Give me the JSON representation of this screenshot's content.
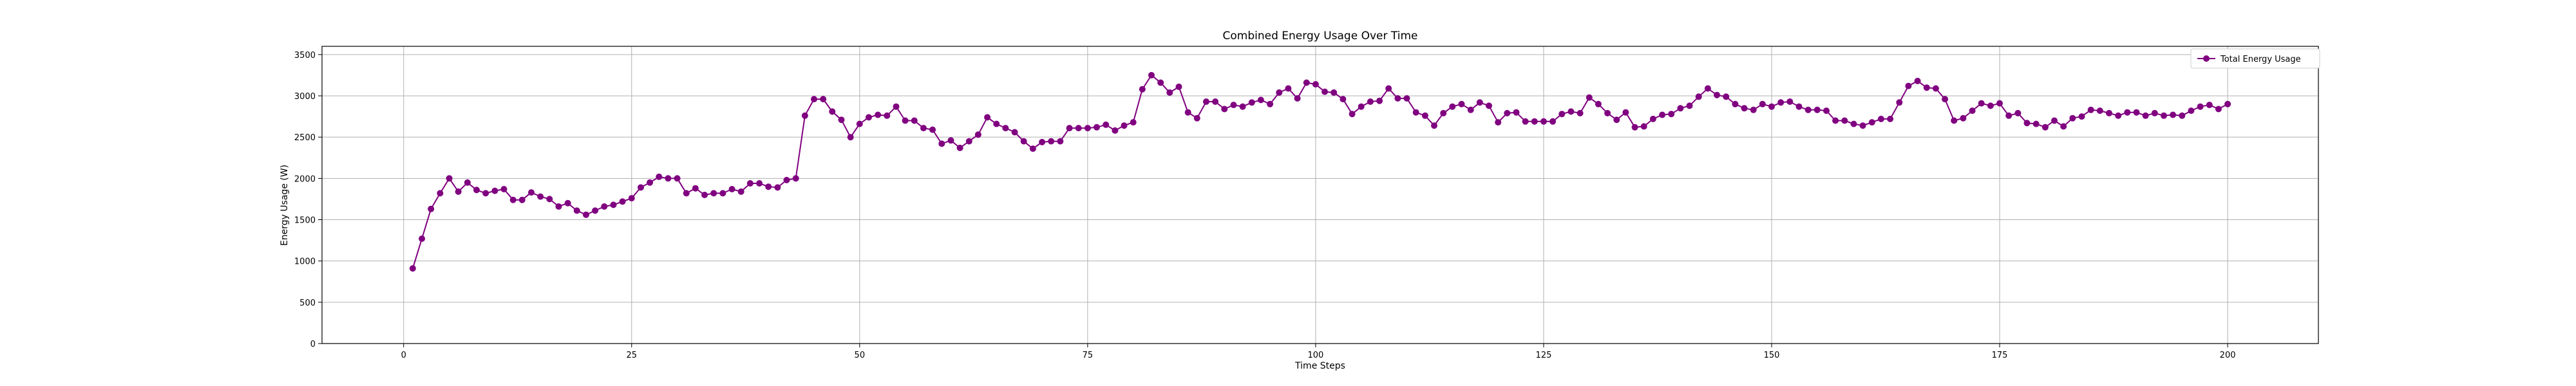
{
  "chart_data": {
    "type": "line",
    "title": "Combined Energy Usage Over Time",
    "xlabel": "Time Steps",
    "ylabel": "Energy Usage (W)",
    "xlim": [
      -8.95,
      209.95
    ],
    "ylim": [
      0,
      3600
    ],
    "xticks": [
      0,
      25,
      50,
      75,
      100,
      125,
      150,
      175,
      200
    ],
    "yticks": [
      0,
      500,
      1000,
      1500,
      2000,
      2500,
      3000,
      3500
    ],
    "grid": true,
    "legend_position": "top-right",
    "series": [
      {
        "name": "Total Energy Usage",
        "color": "#800080",
        "marker": "circle",
        "x": [
          1,
          2,
          3,
          4,
          5,
          6,
          7,
          8,
          9,
          10,
          11,
          12,
          13,
          14,
          15,
          16,
          17,
          18,
          19,
          20,
          21,
          22,
          23,
          24,
          25,
          26,
          27,
          28,
          29,
          30,
          31,
          32,
          33,
          34,
          35,
          36,
          37,
          38,
          39,
          40,
          41,
          42,
          43,
          44,
          45,
          46,
          47,
          48,
          49,
          50,
          51,
          52,
          53,
          54,
          55,
          56,
          57,
          58,
          59,
          60,
          61,
          62,
          63,
          64,
          65,
          66,
          67,
          68,
          69,
          70,
          71,
          72,
          73,
          74,
          75,
          76,
          77,
          78,
          79,
          80,
          81,
          82,
          83,
          84,
          85,
          86,
          87,
          88,
          89,
          90,
          91,
          92,
          93,
          94,
          95,
          96,
          97,
          98,
          99,
          100,
          101,
          102,
          103,
          104,
          105,
          106,
          107,
          108,
          109,
          110,
          111,
          112,
          113,
          114,
          115,
          116,
          117,
          118,
          119,
          120,
          121,
          122,
          123,
          124,
          125,
          126,
          127,
          128,
          129,
          130,
          131,
          132,
          133,
          134,
          135,
          136,
          137,
          138,
          139,
          140,
          141,
          142,
          143,
          144,
          145,
          146,
          147,
          148,
          149,
          150,
          151,
          152,
          153,
          154,
          155,
          156,
          157,
          158,
          159,
          160,
          161,
          162,
          163,
          164,
          165,
          166,
          167,
          168,
          169,
          170,
          171,
          172,
          173,
          174,
          175,
          176,
          177,
          178,
          179,
          180,
          181,
          182,
          183,
          184,
          185,
          186,
          187,
          188,
          189,
          190,
          191,
          192,
          193,
          194,
          195,
          196,
          197,
          198,
          199,
          200
        ],
        "values": [
          910,
          1270,
          1630,
          1820,
          2000,
          1840,
          1950,
          1860,
          1820,
          1850,
          1870,
          1740,
          1740,
          1830,
          1780,
          1750,
          1660,
          1700,
          1610,
          1560,
          1610,
          1660,
          1680,
          1720,
          1760,
          1890,
          1950,
          2020,
          2000,
          2000,
          1820,
          1880,
          1800,
          1820,
          1820,
          1870,
          1840,
          1940,
          1940,
          1900,
          1890,
          1980,
          2000,
          2760,
          2960,
          2960,
          2810,
          2710,
          2500,
          2660,
          2740,
          2770,
          2760,
          2870,
          2700,
          2700,
          2610,
          2590,
          2420,
          2460,
          2370,
          2450,
          2530,
          2740,
          2660,
          2610,
          2560,
          2450,
          2360,
          2440,
          2450,
          2450,
          2610,
          2610,
          2610,
          2620,
          2650,
          2580,
          2640,
          2680,
          3080,
          3250,
          3160,
          3040,
          3110,
          2800,
          2730,
          2930,
          2930,
          2840,
          2890,
          2870,
          2920,
          2950,
          2900,
          3040,
          3090,
          2970,
          3160,
          3140,
          3050,
          3040,
          2960,
          2780,
          2870,
          2930,
          2940,
          3090,
          2970,
          2970,
          2800,
          2760,
          2640,
          2790,
          2870,
          2900,
          2830,
          2920,
          2880,
          2680,
          2790,
          2800,
          2690,
          2690,
          2690,
          2690,
          2780,
          2810,
          2790,
          2980,
          2900,
          2790,
          2710,
          2800,
          2620,
          2630,
          2720,
          2770,
          2780,
          2850,
          2880,
          2990,
          3090,
          3010,
          2990,
          2900,
          2850,
          2830,
          2900,
          2870,
          2920,
          2930,
          2870,
          2830,
          2830,
          2820,
          2700,
          2700,
          2660,
          2640,
          2680,
          2720,
          2720,
          2920,
          3120,
          3180,
          3100,
          3090,
          2960,
          2700,
          2730,
          2820,
          2910,
          2880,
          2910,
          2760,
          2790,
          2670,
          2660,
          2620,
          2700,
          2630,
          2730,
          2750,
          2830,
          2820,
          2790,
          2760,
          2800,
          2800,
          2760,
          2790,
          2760,
          2770,
          2760,
          2820,
          2870,
          2890,
          2840,
          2900
        ]
      }
    ]
  }
}
